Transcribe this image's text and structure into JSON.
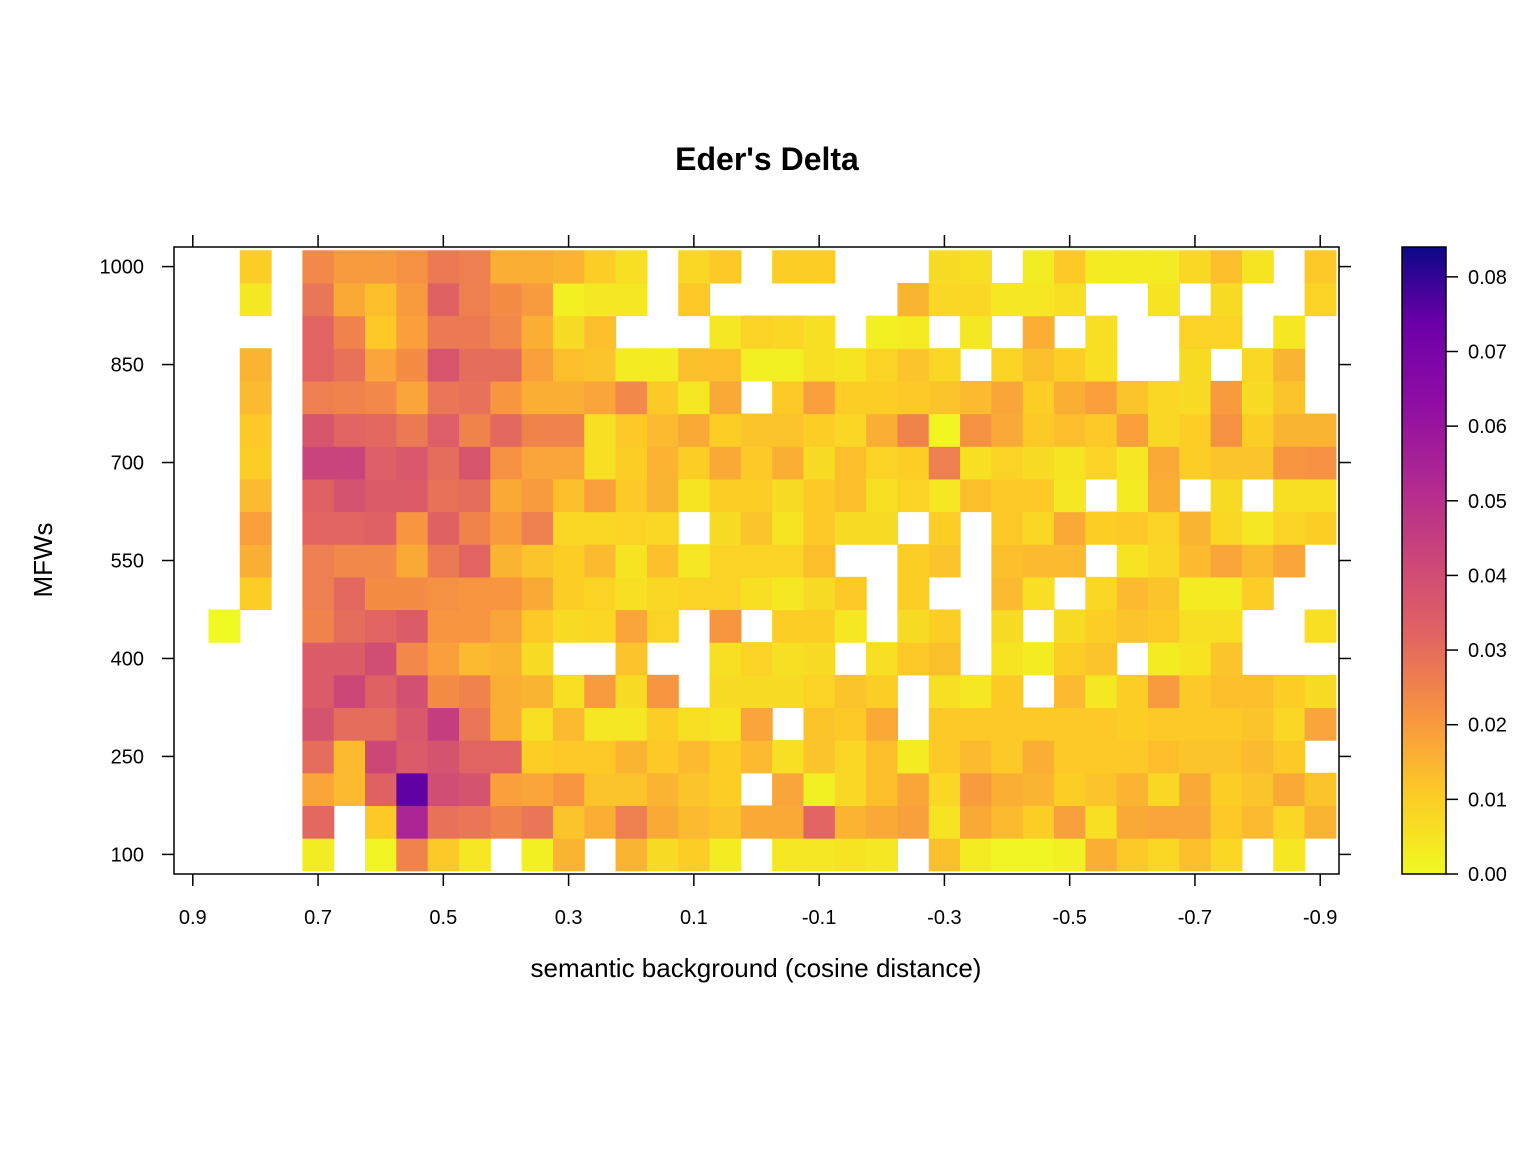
{
  "chart_data": {
    "type": "heatmap",
    "title": "Eder's Delta",
    "xlabel": "semantic background (cosine distance)",
    "ylabel": "MFWs",
    "x_ticks": [
      "0.9",
      "0.7",
      "0.5",
      "0.3",
      "0.1",
      "-0.1",
      "-0.3",
      "-0.5",
      "-0.7",
      "-0.9"
    ],
    "x_tick_values": [
      0.9,
      0.7,
      0.5,
      0.3,
      0.1,
      -0.1,
      -0.3,
      -0.5,
      -0.7,
      -0.9
    ],
    "y_ticks": [
      "100",
      "250",
      "400",
      "550",
      "700",
      "850",
      "1000"
    ],
    "y_tick_values": [
      100,
      250,
      400,
      550,
      700,
      850,
      1000
    ],
    "xlim": [
      0.93,
      -0.93
    ],
    "x_reversed": true,
    "ylim": [
      70,
      1030
    ],
    "x": [
      0.85,
      0.8,
      0.75,
      0.7,
      0.65,
      0.6,
      0.55,
      0.5,
      0.45,
      0.4,
      0.35,
      0.3,
      0.25,
      0.2,
      0.15,
      0.1,
      0.05,
      0.0,
      -0.05,
      -0.1,
      -0.15,
      -0.2,
      -0.25,
      -0.3,
      -0.35,
      -0.4,
      -0.45,
      -0.5,
      -0.55,
      -0.6,
      -0.65,
      -0.7,
      -0.75,
      -0.8,
      -0.85,
      -0.9
    ],
    "y": [
      100,
      150,
      200,
      250,
      300,
      350,
      400,
      450,
      500,
      550,
      600,
      650,
      700,
      750,
      800,
      850,
      900,
      950,
      1000
    ],
    "z": [
      [
        null,
        null,
        null,
        0.003,
        null,
        0.001,
        0.025,
        0.011,
        0.004,
        null,
        0.002,
        0.015,
        null,
        0.015,
        0.007,
        0.01,
        0.003,
        null,
        0.004,
        0.004,
        0.005,
        0.004,
        null,
        0.013,
        0.003,
        0.001,
        0.001,
        0.002,
        0.016,
        0.011,
        0.008,
        0.013,
        0.008,
        null,
        0.004,
        null
      ],
      [
        null,
        null,
        null,
        0.031,
        null,
        0.011,
        0.054,
        0.029,
        0.028,
        0.025,
        0.028,
        0.012,
        0.016,
        0.026,
        0.017,
        0.014,
        0.012,
        0.017,
        0.017,
        0.032,
        0.015,
        0.017,
        0.019,
        0.005,
        0.017,
        0.014,
        0.01,
        0.019,
        0.006,
        0.017,
        0.018,
        0.018,
        0.011,
        0.014,
        0.008,
        0.015
      ],
      [
        null,
        null,
        null,
        0.018,
        0.014,
        0.033,
        0.075,
        0.04,
        0.038,
        0.019,
        0.018,
        0.021,
        0.012,
        0.012,
        0.015,
        0.012,
        0.01,
        null,
        0.018,
        0.002,
        0.008,
        0.013,
        0.018,
        0.008,
        0.02,
        0.016,
        0.015,
        0.01,
        0.012,
        0.015,
        0.008,
        0.017,
        0.01,
        0.012,
        0.017,
        0.012
      ],
      [
        null,
        null,
        null,
        0.03,
        0.014,
        0.042,
        0.035,
        0.038,
        0.032,
        0.032,
        0.01,
        0.011,
        0.011,
        0.015,
        0.011,
        0.014,
        0.01,
        0.014,
        0.006,
        0.012,
        0.008,
        0.013,
        0.003,
        0.011,
        0.014,
        0.011,
        0.016,
        0.011,
        0.011,
        0.011,
        0.013,
        0.012,
        0.012,
        0.014,
        0.011,
        null
      ],
      [
        null,
        null,
        null,
        0.038,
        0.03,
        0.03,
        0.036,
        0.045,
        0.028,
        0.016,
        0.006,
        0.014,
        0.004,
        0.004,
        0.01,
        0.006,
        0.005,
        0.018,
        null,
        0.012,
        0.011,
        0.017,
        null,
        0.011,
        0.011,
        0.011,
        0.011,
        0.011,
        0.011,
        0.01,
        0.011,
        0.011,
        0.011,
        0.012,
        0.008,
        0.018
      ],
      [
        null,
        null,
        null,
        0.035,
        0.042,
        0.033,
        0.039,
        0.023,
        0.025,
        0.016,
        0.015,
        0.006,
        0.02,
        0.007,
        0.021,
        null,
        0.007,
        0.007,
        0.007,
        0.009,
        0.012,
        0.01,
        null,
        0.006,
        0.004,
        0.011,
        null,
        0.014,
        0.004,
        0.01,
        0.02,
        0.011,
        0.013,
        0.013,
        0.01,
        0.007
      ],
      [
        null,
        null,
        null,
        0.035,
        0.035,
        0.04,
        0.024,
        0.019,
        0.014,
        0.015,
        0.007,
        null,
        null,
        0.012,
        null,
        null,
        0.006,
        0.009,
        0.006,
        0.007,
        null,
        0.006,
        0.011,
        0.013,
        null,
        0.005,
        0.003,
        0.01,
        0.012,
        null,
        0.003,
        0.005,
        0.012,
        null,
        null,
        null
      ],
      [
        0,
        null,
        null,
        0.025,
        0.03,
        0.032,
        0.035,
        0.021,
        0.021,
        0.018,
        0.011,
        0.007,
        0.008,
        0.018,
        0.009,
        null,
        0.021,
        null,
        0.01,
        0.01,
        0.004,
        null,
        0.007,
        0.01,
        null,
        0.007,
        null,
        0.007,
        0.01,
        0.012,
        0.011,
        0.006,
        0.006,
        null,
        null,
        0.006
      ],
      [
        null,
        0.01,
        null,
        0.026,
        0.031,
        0.023,
        0.023,
        0.022,
        0.021,
        0.021,
        0.017,
        0.01,
        0.009,
        0.006,
        0.008,
        0.009,
        0.009,
        0.006,
        0.004,
        0.007,
        0.011,
        null,
        0.01,
        null,
        null,
        0.014,
        0.006,
        null,
        0.008,
        0.014,
        0.012,
        0.003,
        0.003,
        0.01,
        null,
        null
      ],
      [
        null,
        0.016,
        null,
        0.026,
        0.024,
        0.024,
        0.017,
        0.027,
        0.032,
        0.015,
        0.012,
        0.01,
        0.014,
        0.005,
        0.013,
        0.004,
        0.009,
        0.009,
        0.009,
        0.013,
        null,
        null,
        0.01,
        0.012,
        null,
        0.013,
        0.014,
        0.014,
        null,
        0.005,
        0.008,
        0.014,
        0.018,
        0.014,
        0.018,
        null
      ],
      [
        null,
        0.019,
        null,
        0.032,
        0.032,
        0.033,
        0.021,
        0.033,
        0.025,
        0.02,
        0.026,
        0.008,
        0.008,
        0.009,
        0.008,
        null,
        0.007,
        0.012,
        0.005,
        0.011,
        0.007,
        0.007,
        null,
        0.01,
        null,
        0.011,
        0.008,
        0.017,
        0.01,
        0.011,
        0.009,
        0.015,
        0.008,
        0.004,
        0.009,
        0.01
      ],
      [
        null,
        0.014,
        null,
        0.033,
        0.038,
        0.035,
        0.035,
        0.029,
        0.03,
        0.017,
        0.02,
        0.013,
        0.019,
        0.011,
        0.015,
        0.005,
        0.01,
        0.01,
        0.007,
        0.011,
        0.013,
        0.006,
        0.009,
        0.004,
        0.013,
        0.011,
        0.011,
        0.004,
        null,
        0.003,
        0.016,
        null,
        0.007,
        null,
        0.006,
        0.006
      ],
      [
        null,
        0.01,
        null,
        0.043,
        0.043,
        0.034,
        0.036,
        0.03,
        0.037,
        0.022,
        0.018,
        0.018,
        0.006,
        0.01,
        0.015,
        0.01,
        0.017,
        0.011,
        0.016,
        0.007,
        0.013,
        0.009,
        0.01,
        0.026,
        0.006,
        0.009,
        0.007,
        0.005,
        0.009,
        0.004,
        0.017,
        0.01,
        0.012,
        0.012,
        0.021,
        0.022
      ],
      [
        null,
        0.011,
        null,
        0.037,
        0.032,
        0.031,
        0.027,
        0.034,
        0.025,
        0.031,
        0.025,
        0.025,
        0.006,
        0.011,
        0.014,
        0.017,
        0.01,
        0.012,
        0.012,
        0.01,
        0.008,
        0.016,
        0.025,
        0.001,
        0.022,
        0.017,
        0.011,
        0.013,
        0.011,
        0.019,
        0.008,
        0.01,
        0.022,
        0.01,
        0.015,
        0.015
      ],
      [
        null,
        0.014,
        null,
        0.026,
        0.025,
        0.024,
        0.018,
        0.028,
        0.029,
        0.021,
        0.016,
        0.016,
        0.018,
        0.024,
        0.011,
        0.004,
        0.017,
        null,
        0.011,
        0.019,
        0.01,
        0.01,
        0.011,
        0.012,
        0.014,
        0.018,
        0.01,
        0.016,
        0.019,
        0.012,
        0.008,
        0.007,
        0.02,
        0.007,
        0.012,
        null
      ],
      [
        null,
        0.015,
        null,
        0.032,
        0.029,
        0.018,
        0.023,
        0.037,
        0.03,
        0.03,
        0.019,
        0.013,
        0.012,
        0.003,
        0.003,
        0.013,
        0.013,
        0.002,
        0.002,
        0.006,
        0.005,
        0.009,
        0.012,
        0.008,
        null,
        0.009,
        0.013,
        0.01,
        0.006,
        null,
        null,
        0.007,
        null,
        0.008,
        0.015,
        null
      ],
      [
        null,
        null,
        null,
        0.032,
        0.025,
        0.011,
        0.019,
        0.027,
        0.027,
        0.024,
        0.016,
        0.007,
        0.013,
        null,
        null,
        null,
        0.004,
        0.009,
        0.008,
        0.006,
        null,
        0.002,
        0.003,
        null,
        0.004,
        null,
        0.016,
        null,
        0.006,
        null,
        null,
        0.009,
        0.009,
        null,
        0.004,
        null
      ],
      [
        null,
        0.004,
        null,
        0.028,
        0.017,
        0.013,
        0.02,
        0.033,
        0.026,
        0.023,
        0.02,
        0.002,
        0.004,
        0.004,
        null,
        0.011,
        null,
        null,
        null,
        null,
        null,
        null,
        0.015,
        0.008,
        0.008,
        0.004,
        0.004,
        0.006,
        null,
        null,
        0.005,
        null,
        0.007,
        null,
        null,
        0.009
      ],
      [
        null,
        0.01,
        null,
        0.024,
        0.02,
        0.02,
        0.022,
        0.027,
        0.026,
        0.016,
        0.016,
        0.015,
        0.01,
        0.006,
        null,
        0.008,
        0.011,
        null,
        0.01,
        0.01,
        null,
        null,
        null,
        0.007,
        0.006,
        null,
        0.003,
        0.011,
        0.003,
        0.003,
        0.003,
        0.008,
        0.013,
        0.005,
        null,
        0.011
      ]
    ],
    "zlim": [
      0,
      0.084
    ],
    "colorbar_ticks": [
      "0.00",
      "0.01",
      "0.02",
      "0.03",
      "0.04",
      "0.05",
      "0.06",
      "0.07",
      "0.08"
    ],
    "colorbar_tick_values": [
      0,
      0.01,
      0.02,
      0.03,
      0.04,
      0.05,
      0.06,
      0.07,
      0.08
    ],
    "colorscale": [
      [
        0.0,
        "#f0f921"
      ],
      [
        0.12,
        "#fcce25"
      ],
      [
        0.25,
        "#f89540"
      ],
      [
        0.38,
        "#e16462"
      ],
      [
        0.5,
        "#cc4778"
      ],
      [
        0.62,
        "#b12a90"
      ],
      [
        0.75,
        "#8f0da4"
      ],
      [
        0.88,
        "#6a00a8"
      ],
      [
        1.0,
        "#0d0887"
      ]
    ],
    "grid": false,
    "legend": "right colorbar"
  }
}
